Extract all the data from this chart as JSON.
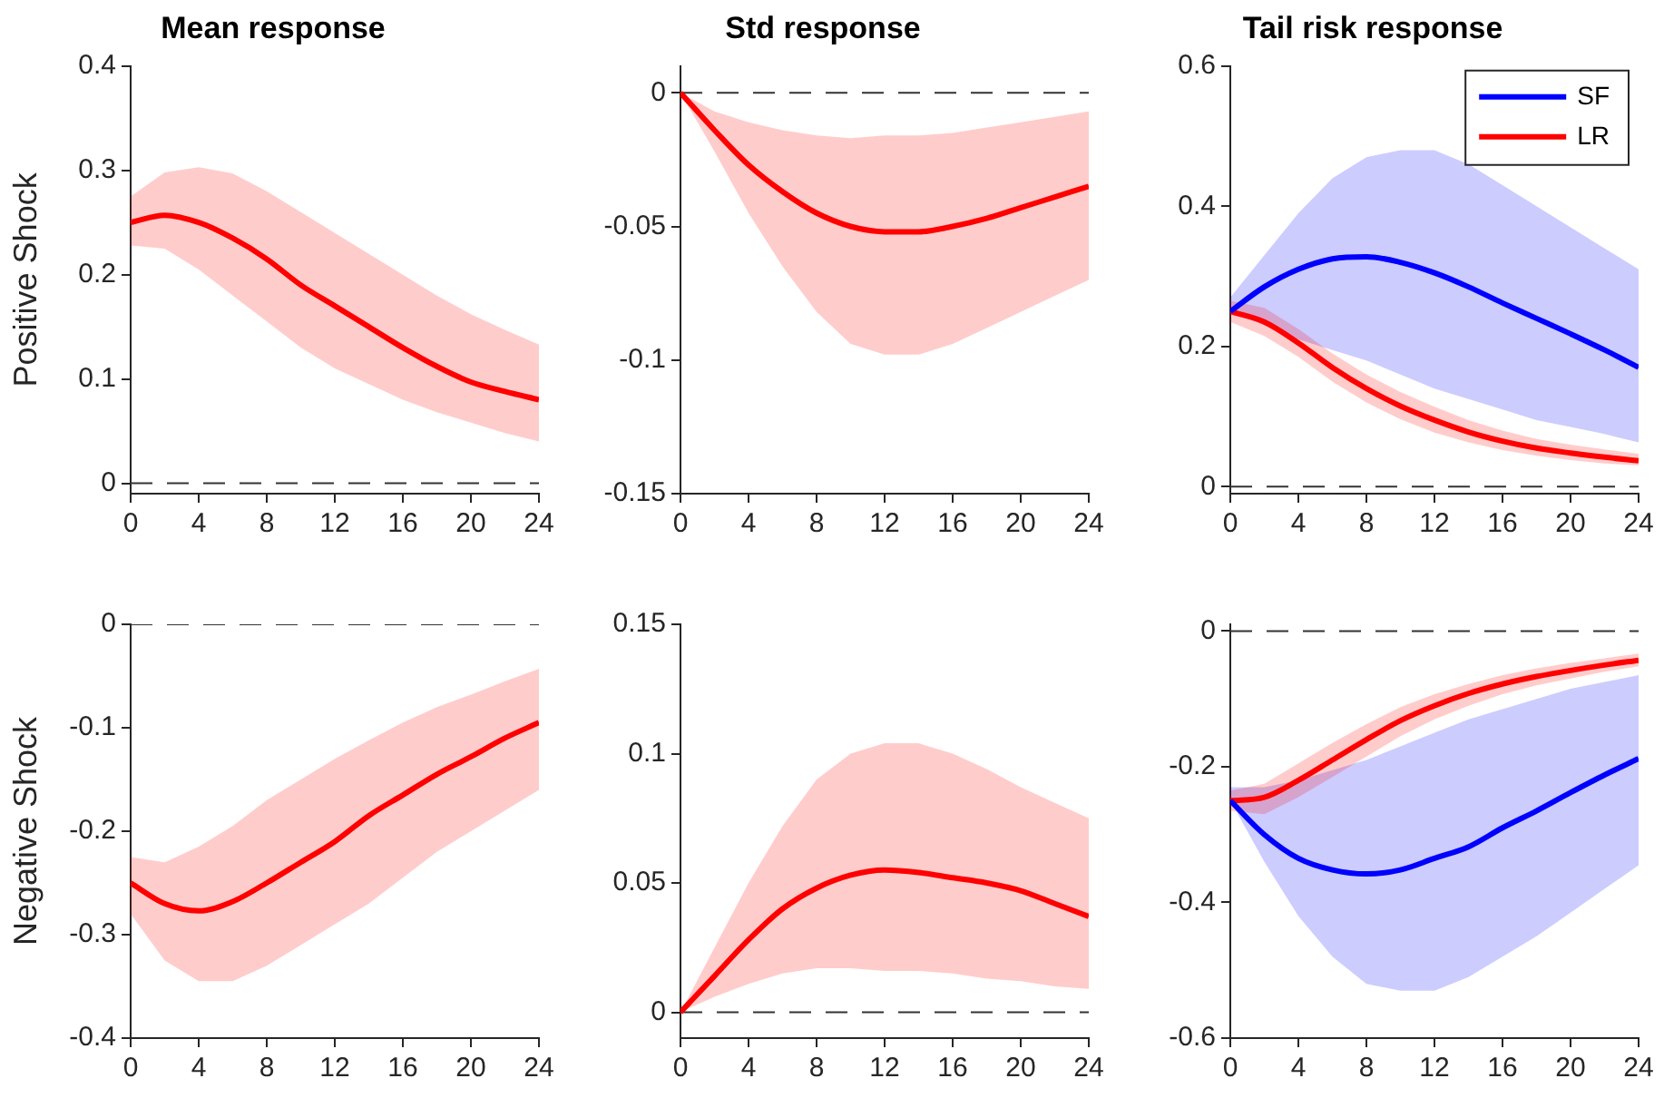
{
  "chart_data": [
    {
      "type": "line",
      "title": "Mean response",
      "ylabel": "Positive Shock",
      "x": [
        0,
        2,
        4,
        6,
        8,
        10,
        12,
        14,
        16,
        18,
        20,
        22,
        24
      ],
      "xlim": [
        0,
        24
      ],
      "xticks": [
        0,
        4,
        8,
        12,
        16,
        20,
        24
      ],
      "ylim": [
        -0.01,
        0.4
      ],
      "yticks": [
        0,
        0.1,
        0.2,
        0.3,
        0.4
      ],
      "marker": "none",
      "line_style": "solid",
      "series": [
        {
          "color": "#ff0000",
          "values": [
            0.25,
            0.257,
            0.25,
            0.235,
            0.215,
            0.19,
            0.17,
            0.15,
            0.13,
            0.112,
            0.097,
            0.088,
            0.08
          ],
          "lower": [
            0.228,
            0.225,
            0.205,
            0.18,
            0.155,
            0.13,
            0.11,
            0.095,
            0.08,
            0.068,
            0.058,
            0.048,
            0.04
          ],
          "upper": [
            0.275,
            0.298,
            0.303,
            0.297,
            0.28,
            0.26,
            0.24,
            0.22,
            0.2,
            0.18,
            0.162,
            0.147,
            0.133
          ]
        }
      ],
      "ref_lines": [
        {
          "axis": "y",
          "value": 0,
          "color": "#333333",
          "line_style": "dashed"
        }
      ]
    },
    {
      "type": "line",
      "title": "Std response",
      "x": [
        0,
        2,
        4,
        6,
        8,
        10,
        12,
        14,
        16,
        18,
        20,
        22,
        24
      ],
      "xlim": [
        0,
        24
      ],
      "xticks": [
        0,
        4,
        8,
        12,
        16,
        20,
        24
      ],
      "ylim": [
        -0.15,
        0.01
      ],
      "yticks": [
        -0.15,
        -0.1,
        -0.05,
        0
      ],
      "marker": "none",
      "line_style": "solid",
      "series": [
        {
          "color": "#ff0000",
          "values": [
            0,
            -0.014,
            -0.027,
            -0.037,
            -0.045,
            -0.05,
            -0.052,
            -0.052,
            -0.05,
            -0.047,
            -0.043,
            -0.039,
            -0.035
          ],
          "lower": [
            0,
            -0.022,
            -0.045,
            -0.065,
            -0.082,
            -0.094,
            -0.098,
            -0.098,
            -0.094,
            -0.088,
            -0.082,
            -0.076,
            -0.07
          ],
          "upper": [
            0,
            -0.007,
            -0.011,
            -0.014,
            -0.016,
            -0.017,
            -0.016,
            -0.016,
            -0.015,
            -0.013,
            -0.011,
            -0.009,
            -0.007
          ]
        }
      ],
      "ref_lines": [
        {
          "axis": "y",
          "value": 0,
          "color": "#333333",
          "line_style": "dashed"
        }
      ]
    },
    {
      "type": "line",
      "title": "Tail risk response",
      "x": [
        0,
        2,
        4,
        6,
        8,
        10,
        12,
        14,
        16,
        18,
        20,
        22,
        24
      ],
      "xlim": [
        0,
        24
      ],
      "xticks": [
        0,
        4,
        8,
        12,
        16,
        20,
        24
      ],
      "ylim": [
        -0.01,
        0.6
      ],
      "yticks": [
        0,
        0.2,
        0.4,
        0.6
      ],
      "marker": "none",
      "line_style": "solid",
      "legend": "top right",
      "series": [
        {
          "name": "SF",
          "color": "#0000ff",
          "values": [
            0.25,
            0.285,
            0.31,
            0.325,
            0.328,
            0.32,
            0.305,
            0.285,
            0.262,
            0.24,
            0.218,
            0.195,
            0.17
          ],
          "lower": [
            0.25,
            0.23,
            0.21,
            0.195,
            0.18,
            0.16,
            0.14,
            0.125,
            0.11,
            0.095,
            0.085,
            0.075,
            0.063
          ],
          "upper": [
            0.27,
            0.33,
            0.39,
            0.44,
            0.47,
            0.48,
            0.48,
            0.46,
            0.43,
            0.4,
            0.37,
            0.34,
            0.31
          ]
        },
        {
          "name": "LR",
          "color": "#ff0000",
          "values": [
            0.25,
            0.235,
            0.205,
            0.17,
            0.14,
            0.115,
            0.095,
            0.078,
            0.065,
            0.055,
            0.048,
            0.042,
            0.037
          ],
          "lower": [
            0.235,
            0.215,
            0.185,
            0.15,
            0.12,
            0.096,
            0.077,
            0.063,
            0.052,
            0.044,
            0.038,
            0.033,
            0.03
          ],
          "upper": [
            0.265,
            0.255,
            0.225,
            0.19,
            0.16,
            0.135,
            0.114,
            0.095,
            0.08,
            0.068,
            0.06,
            0.053,
            0.047
          ]
        }
      ],
      "ref_lines": [
        {
          "axis": "y",
          "value": 0,
          "color": "#333333",
          "line_style": "dashed"
        }
      ]
    },
    {
      "type": "line",
      "ylabel": "Negative Shock",
      "x": [
        0,
        2,
        4,
        6,
        8,
        10,
        12,
        14,
        16,
        18,
        20,
        22,
        24
      ],
      "xlim": [
        0,
        24
      ],
      "xticks": [
        0,
        4,
        8,
        12,
        16,
        20,
        24
      ],
      "ylim": [
        -0.4,
        0
      ],
      "yticks": [
        -0.4,
        -0.3,
        -0.2,
        -0.1,
        0
      ],
      "marker": "none",
      "line_style": "solid",
      "series": [
        {
          "color": "#ff0000",
          "values": [
            -0.25,
            -0.27,
            -0.277,
            -0.268,
            -0.25,
            -0.23,
            -0.21,
            -0.185,
            -0.165,
            -0.145,
            -0.128,
            -0.11,
            -0.095
          ],
          "lower": [
            -0.28,
            -0.325,
            -0.345,
            -0.345,
            -0.33,
            -0.31,
            -0.29,
            -0.27,
            -0.245,
            -0.22,
            -0.2,
            -0.18,
            -0.16
          ],
          "upper": [
            -0.225,
            -0.23,
            -0.215,
            -0.195,
            -0.17,
            -0.15,
            -0.13,
            -0.112,
            -0.095,
            -0.08,
            -0.068,
            -0.055,
            -0.043
          ]
        }
      ],
      "ref_lines": [
        {
          "axis": "y",
          "value": 0,
          "color": "#333333",
          "line_style": "dashed"
        }
      ]
    },
    {
      "type": "line",
      "x": [
        0,
        2,
        4,
        6,
        8,
        10,
        12,
        14,
        16,
        18,
        20,
        22,
        24
      ],
      "xlim": [
        0,
        24
      ],
      "xticks": [
        0,
        4,
        8,
        12,
        16,
        20,
        24
      ],
      "ylim": [
        -0.01,
        0.15
      ],
      "yticks": [
        0,
        0.05,
        0.1,
        0.15
      ],
      "marker": "none",
      "line_style": "solid",
      "series": [
        {
          "color": "#ff0000",
          "values": [
            0,
            0.014,
            0.028,
            0.04,
            0.048,
            0.053,
            0.055,
            0.054,
            0.052,
            0.05,
            0.047,
            0.042,
            0.037
          ],
          "lower": [
            0,
            0.006,
            0.011,
            0.015,
            0.017,
            0.017,
            0.016,
            0.016,
            0.015,
            0.013,
            0.012,
            0.01,
            0.009
          ],
          "upper": [
            0,
            0.025,
            0.05,
            0.072,
            0.09,
            0.1,
            0.104,
            0.104,
            0.1,
            0.094,
            0.087,
            0.081,
            0.075
          ]
        }
      ],
      "ref_lines": [
        {
          "axis": "y",
          "value": 0,
          "color": "#333333",
          "line_style": "dashed"
        }
      ]
    },
    {
      "type": "line",
      "x": [
        0,
        2,
        4,
        6,
        8,
        10,
        12,
        14,
        16,
        18,
        20,
        22,
        24
      ],
      "xlim": [
        0,
        24
      ],
      "xticks": [
        0,
        4,
        8,
        12,
        16,
        20,
        24
      ],
      "ylim": [
        -0.6,
        0.01
      ],
      "yticks": [
        -0.6,
        -0.4,
        -0.2,
        0
      ],
      "marker": "none",
      "line_style": "solid",
      "series": [
        {
          "color": "#0000ff",
          "values": [
            -0.25,
            -0.3,
            -0.335,
            -0.352,
            -0.358,
            -0.352,
            -0.335,
            -0.318,
            -0.29,
            -0.265,
            -0.238,
            -0.212,
            -0.188
          ],
          "lower": [
            -0.25,
            -0.34,
            -0.42,
            -0.48,
            -0.52,
            -0.53,
            -0.53,
            -0.51,
            -0.48,
            -0.45,
            -0.415,
            -0.38,
            -0.345
          ],
          "upper": [
            -0.23,
            -0.23,
            -0.22,
            -0.205,
            -0.19,
            -0.17,
            -0.15,
            -0.13,
            -0.115,
            -0.1,
            -0.085,
            -0.075,
            -0.065
          ]
        },
        {
          "color": "#ff0000",
          "values": [
            -0.25,
            -0.245,
            -0.22,
            -0.19,
            -0.16,
            -0.132,
            -0.11,
            -0.092,
            -0.078,
            -0.067,
            -0.058,
            -0.05,
            -0.043
          ],
          "lower": [
            -0.265,
            -0.27,
            -0.245,
            -0.215,
            -0.185,
            -0.155,
            -0.13,
            -0.11,
            -0.093,
            -0.08,
            -0.07,
            -0.06,
            -0.052
          ],
          "upper": [
            -0.235,
            -0.225,
            -0.195,
            -0.165,
            -0.137,
            -0.112,
            -0.093,
            -0.078,
            -0.065,
            -0.055,
            -0.047,
            -0.04,
            -0.033
          ]
        }
      ],
      "ref_lines": [
        {
          "axis": "y",
          "value": 0,
          "color": "#333333",
          "line_style": "dashed"
        }
      ]
    }
  ]
}
